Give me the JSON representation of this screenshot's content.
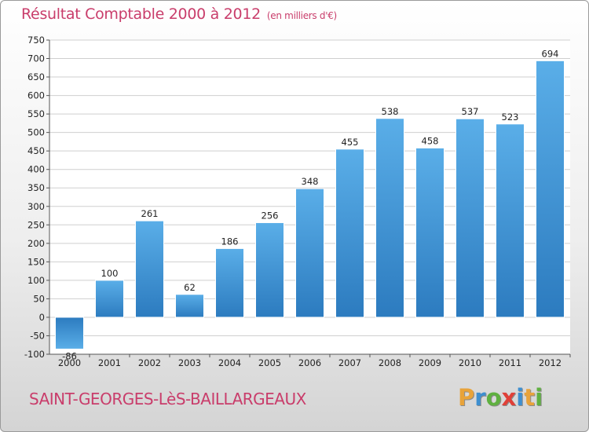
{
  "header": {
    "title": "Résultat Comptable 2000 à 2012",
    "subtitle": "(en milliers d'€)"
  },
  "footer": {
    "commune": "SAINT-GEORGES-LèS-BAILLARGEAUX",
    "brand_letters": [
      "P",
      "r",
      "o",
      "x",
      "i",
      "t",
      "i"
    ],
    "brand_colors": [
      "#e8a33a",
      "#3e8fd0",
      "#5fb040",
      "#e04038",
      "#3e8fd0",
      "#e8a33a",
      "#5fb040"
    ]
  },
  "colors": {
    "title": "#c93d6b",
    "bar_light": "#5aaee8",
    "bar_dark": "#2c7bbf",
    "grid": "#cfcfcf"
  },
  "chart_data": {
    "type": "bar",
    "title": "Résultat Comptable 2000 à 2012",
    "subtitle": "(en milliers d'€)",
    "categories": [
      "2000",
      "2001",
      "2002",
      "2003",
      "2004",
      "2005",
      "2006",
      "2007",
      "2008",
      "2009",
      "2010",
      "2011",
      "2012"
    ],
    "values": [
      -86,
      100,
      261,
      62,
      186,
      256,
      348,
      455,
      538,
      458,
      537,
      523,
      694
    ],
    "ylim": [
      -100,
      750
    ],
    "yticks": [
      -100,
      -50,
      0,
      50,
      100,
      150,
      200,
      250,
      300,
      350,
      400,
      450,
      500,
      550,
      600,
      650,
      700,
      750
    ],
    "grid": true
  }
}
